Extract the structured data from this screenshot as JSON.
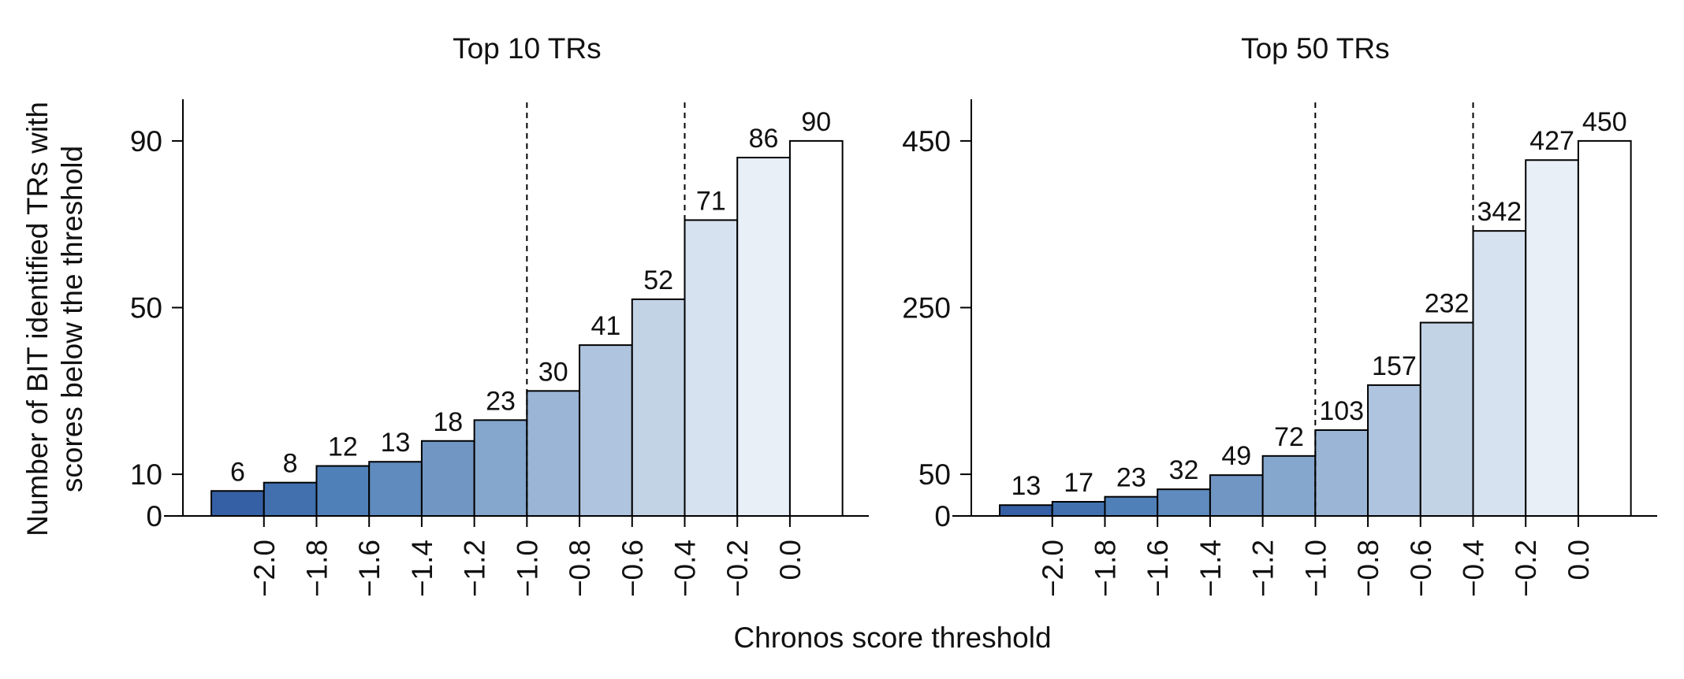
{
  "figure": {
    "xlabel": "Chronos score threshold",
    "ylabel_lines": [
      "Number of BIT identified TRs with",
      "scores below the threshold"
    ]
  },
  "chart_data": [
    {
      "type": "bar",
      "title": "Top 10 TRs",
      "xlabel": "Chronos score threshold",
      "ylabel": "Number of BIT identified TRs with scores below the threshold",
      "x_tick_labels": [
        "−2.0",
        "−1.8",
        "−1.6",
        "−1.4",
        "−1.2",
        "−1.0",
        "−0.8",
        "−0.6",
        "−0.4",
        "−0.2",
        "0.0"
      ],
      "x_ticks": [
        -2.0,
        -1.8,
        -1.6,
        -1.4,
        -1.2,
        -1.0,
        -0.8,
        -0.6,
        -0.4,
        -0.2,
        0.0
      ],
      "bin_edges": [
        -2.2,
        -2.0,
        -1.8,
        -1.6,
        -1.4,
        -1.2,
        -1.0,
        -0.8,
        -0.6,
        -0.4,
        -0.2,
        0.0,
        0.2
      ],
      "values": [
        6,
        8,
        12,
        13,
        18,
        23,
        30,
        41,
        52,
        71,
        86,
        90
      ],
      "y_ticks": [
        0,
        10,
        50,
        90
      ],
      "ylim": [
        0,
        100
      ],
      "xlim": [
        -2.38,
        0.3
      ],
      "reference_lines": [
        -1.0,
        -0.4
      ],
      "colors": [
        "#3560a5",
        "#4270ae",
        "#5080b8",
        "#5f8bbe",
        "#7196c4",
        "#85a6cd",
        "#9bb5d6",
        "#afc4de",
        "#c3d3e6",
        "#d6e2ef",
        "#e9eff7",
        "#ffffff"
      ]
    },
    {
      "type": "bar",
      "title": "Top 50 TRs",
      "xlabel": "Chronos score threshold",
      "ylabel": "Number of BIT identified TRs with scores below the threshold",
      "x_tick_labels": [
        "−2.0",
        "−1.8",
        "−1.6",
        "−1.4",
        "−1.2",
        "−1.0",
        "−0.8",
        "−0.6",
        "−0.4",
        "−0.2",
        "0.0"
      ],
      "x_ticks": [
        -2.0,
        -1.8,
        -1.6,
        -1.4,
        -1.2,
        -1.0,
        -0.8,
        -0.6,
        -0.4,
        -0.2,
        0.0
      ],
      "bin_edges": [
        -2.2,
        -2.0,
        -1.8,
        -1.6,
        -1.4,
        -1.2,
        -1.0,
        -0.8,
        -0.6,
        -0.4,
        -0.2,
        0.0,
        0.2
      ],
      "values": [
        13,
        17,
        23,
        32,
        49,
        72,
        103,
        157,
        232,
        342,
        427,
        450
      ],
      "y_ticks": [
        0,
        50,
        250,
        450
      ],
      "ylim": [
        0,
        500
      ],
      "xlim": [
        -2.38,
        0.3
      ],
      "reference_lines": [
        -1.0,
        -0.4
      ],
      "colors": [
        "#3560a5",
        "#4270ae",
        "#5080b8",
        "#5f8bbe",
        "#7196c4",
        "#85a6cd",
        "#9bb5d6",
        "#afc4de",
        "#c3d3e6",
        "#d6e2ef",
        "#e9eff7",
        "#ffffff"
      ]
    }
  ]
}
